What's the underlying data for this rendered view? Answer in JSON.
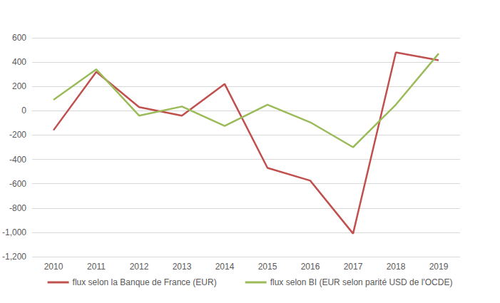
{
  "chart_data": {
    "type": "line",
    "categories": [
      "2010",
      "2011",
      "2012",
      "2013",
      "2014",
      "2015",
      "2016",
      "2017",
      "2018",
      "2019"
    ],
    "series": [
      {
        "name": "flux selon la Banque de France (EUR)",
        "color": "#c0504d",
        "values": [
          -160,
          320,
          30,
          -40,
          220,
          -470,
          -575,
          -1010,
          480,
          415
        ]
      },
      {
        "name": "flux selon BI (EUR selon parité USD de l'OCDE)",
        "color": "#9bbb59",
        "values": [
          90,
          340,
          -40,
          35,
          -125,
          50,
          -95,
          -300,
          50,
          470
        ]
      }
    ],
    "ylim": [
      -1200,
      600
    ],
    "yticks": [
      -1200,
      -1000,
      -800,
      -600,
      -400,
      -200,
      0,
      200,
      400,
      600
    ],
    "grid": true,
    "legend": "bottom"
  }
}
